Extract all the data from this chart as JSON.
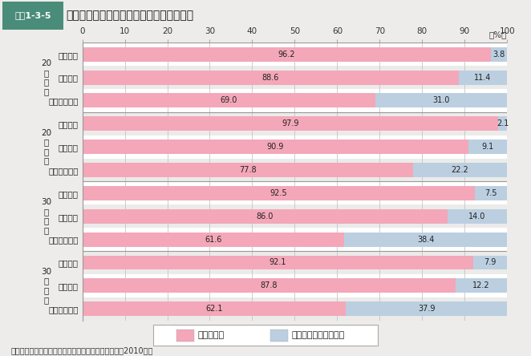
{
  "title_box_label": "図表1-3-5",
  "title_text": "恋人の有無／交際経験別の若者の結婚意向",
  "source": "資料：内閣府「結婚・家族形成に関する意識調査」（2010年）",
  "categories": [
    "恋人あり",
    "恋人なし",
    "交際経験なし",
    "恋人あり",
    "恋人なし",
    "交際経験なし",
    "恋人あり",
    "恋人なし",
    "交際経験なし",
    "恋人あり",
    "恋人なし",
    "交際経験なし"
  ],
  "group_labels": [
    "20\n代\n男\n性",
    "20\n代\n女\n性",
    "30\n代\n男\n性",
    "30\n代\n女\n性"
  ],
  "marry_yes": [
    96.2,
    88.6,
    69.0,
    97.9,
    90.9,
    77.8,
    92.5,
    86.0,
    61.6,
    92.1,
    87.8,
    62.1
  ],
  "marry_no": [
    3.8,
    11.4,
    31.0,
    2.1,
    9.1,
    22.2,
    7.5,
    14.0,
    38.4,
    7.9,
    12.2,
    37.9
  ],
  "color_yes": "#F4A7B9",
  "color_no": "#BBCFE0",
  "bg_color": "#EDECEA",
  "plot_bg": "#EBEBEA",
  "title_box_bg": "#4A8C7A",
  "title_box_border": "#2A7A5A",
  "bar_height": 0.62,
  "legend_yes": "結婚したい",
  "legend_no": "結婚するつもりはない",
  "xticks": [
    0,
    10,
    20,
    30,
    40,
    50,
    60,
    70,
    80,
    90,
    100
  ],
  "row_colors": [
    "#F0EFED",
    "#E8E7E5"
  ]
}
